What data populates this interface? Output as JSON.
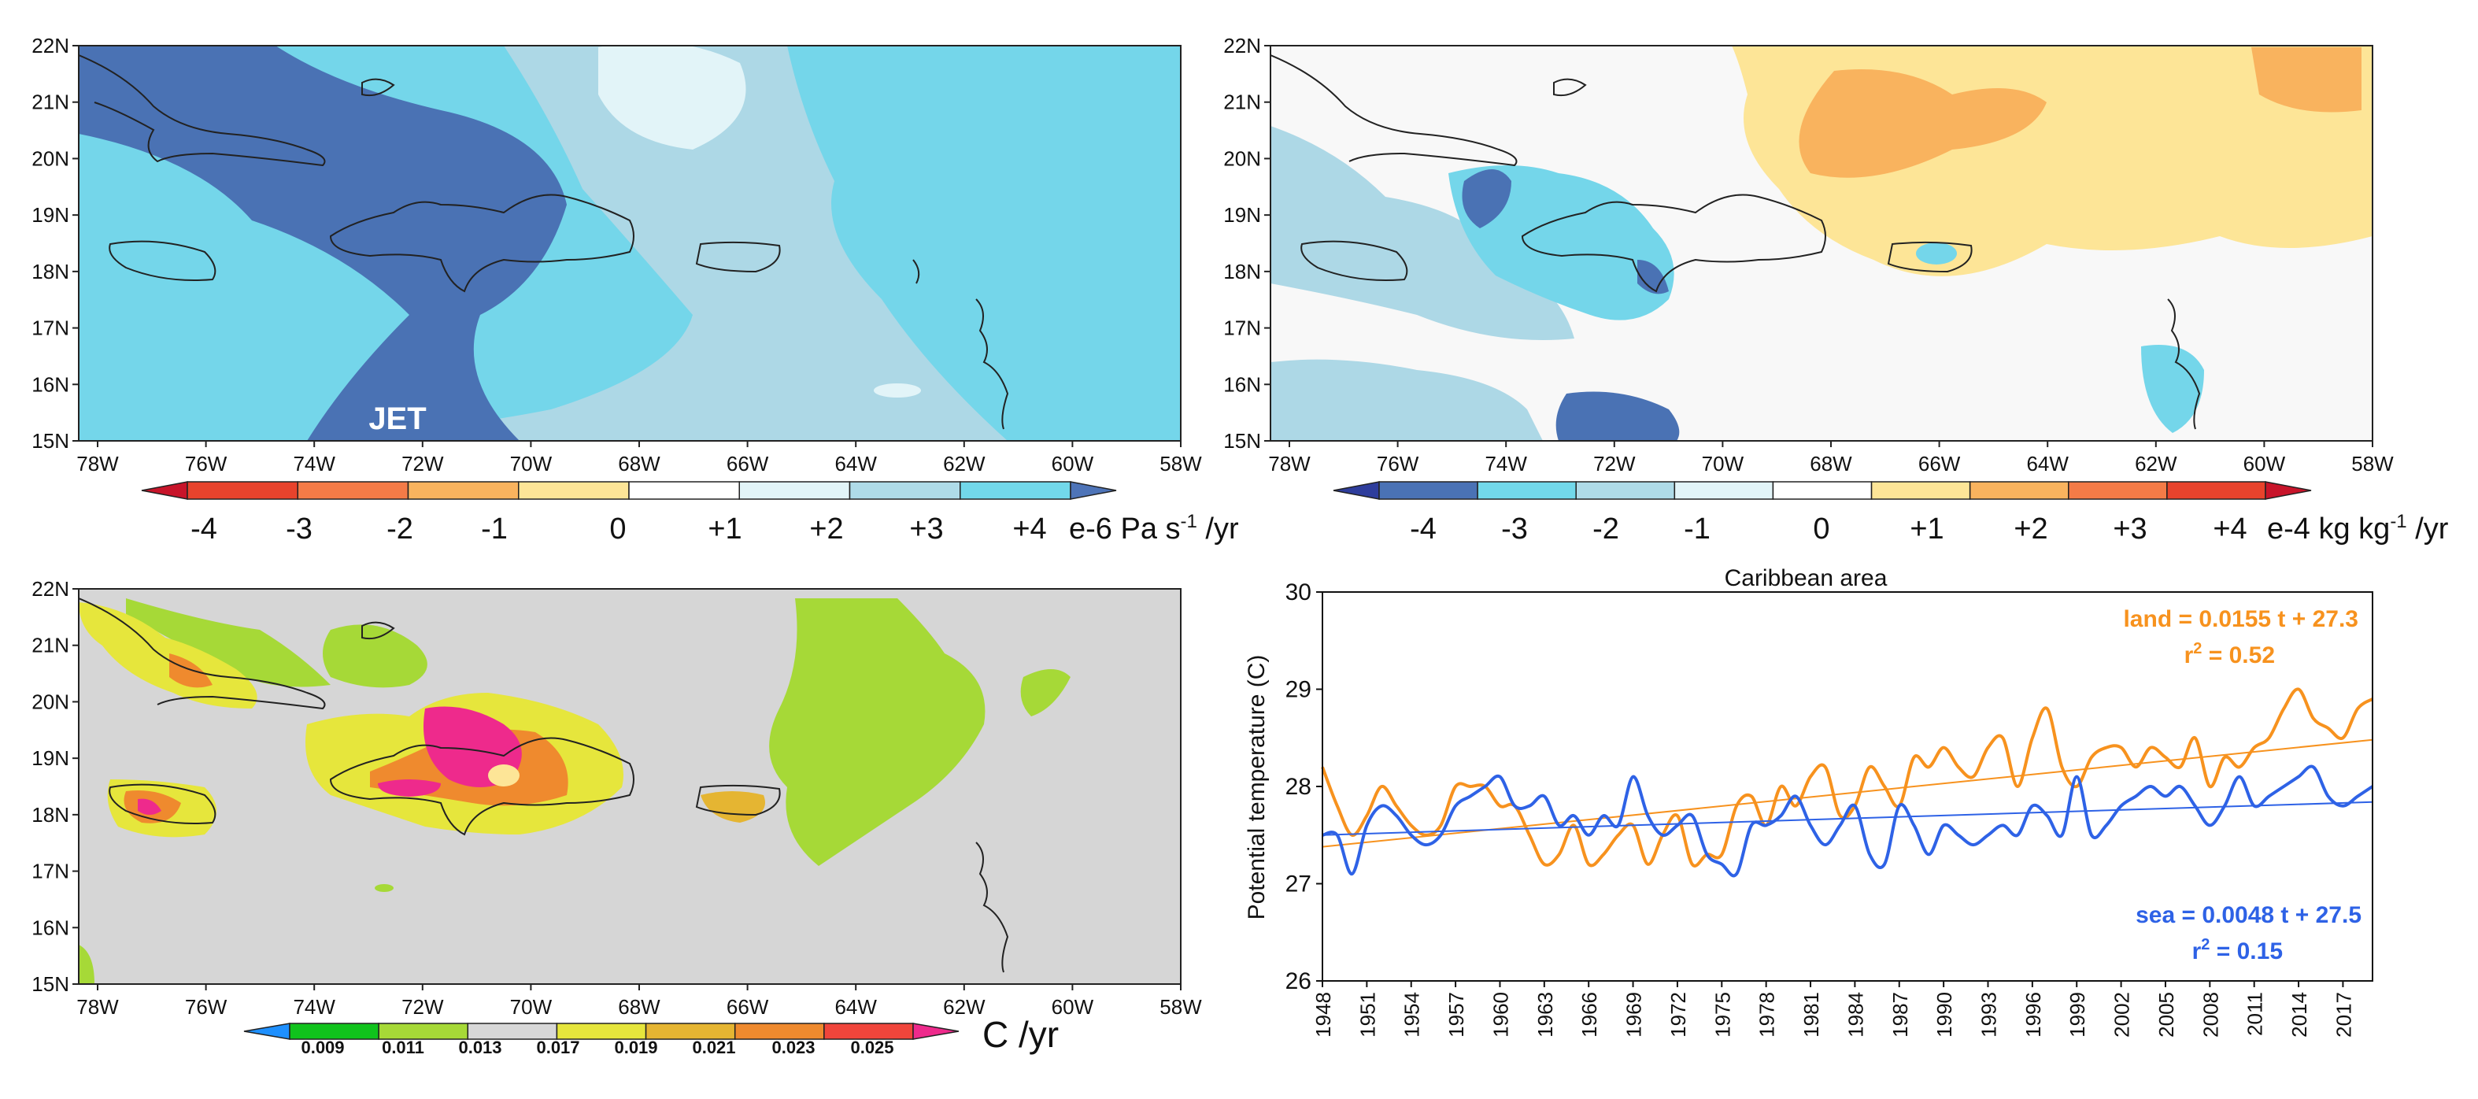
{
  "figure": {
    "lat_labels": [
      "22N",
      "21N",
      "20N",
      "19N",
      "18N",
      "17N",
      "16N",
      "15N"
    ],
    "lon_labels": [
      "78W",
      "76W",
      "74W",
      "72W",
      "70W",
      "68W",
      "66W",
      "64W",
      "62W",
      "60W",
      "58W"
    ]
  },
  "panel_a": {
    "annotation": "JET",
    "colorbar": {
      "ticks": [
        "-4",
        "-3",
        "-2",
        "-1",
        "0",
        "+1",
        "+2",
        "+3",
        "+4"
      ],
      "unit_prefix": "e-6 Pa s",
      "unit_sup": "-1",
      "unit_suffix": " /yr",
      "colors": [
        "#c8142a",
        "#e8432c",
        "#f47b47",
        "#f9b35e",
        "#fde597",
        "#ffffff",
        "#e2f4f8",
        "#afdbe8",
        "#72d8ea",
        "#4e74b8"
      ]
    }
  },
  "panel_b": {
    "colorbar": {
      "ticks": [
        "-4",
        "-3",
        "-2",
        "-1",
        "0",
        "+1",
        "+2",
        "+3",
        "+4"
      ],
      "unit_prefix": "e-4 kg kg",
      "unit_sup": "-1",
      "unit_suffix": " /yr",
      "colors": [
        "#2e3d9c",
        "#4a72b5",
        "#72d8ea",
        "#afdbe8",
        "#e2f4f8",
        "#ffffff",
        "#fde597",
        "#f9b35e",
        "#f47b47",
        "#e8432c",
        "#c8142a"
      ]
    }
  },
  "panel_c": {
    "colorbar": {
      "ticks": [
        "0.009",
        "0.011",
        "0.013",
        "0.017",
        "0.019",
        "0.021",
        "0.023",
        "0.025"
      ],
      "unit": "C /yr",
      "colors": [
        "#1e90ff",
        "#10c31c",
        "#a6d937",
        "#d7d7d7",
        "#e6e63c",
        "#e5b532",
        "#ef8a2e",
        "#f0453b",
        "#ee2a8c"
      ]
    }
  },
  "chart_data": {
    "type": "line",
    "title": "Caribbean area",
    "ylabel": "Potential temperature (C)",
    "xlabel": "",
    "ylim": [
      26,
      30
    ],
    "yticks": [
      26,
      27,
      28,
      29,
      30
    ],
    "xlim": [
      1948,
      2019
    ],
    "x_tick_labels": [
      "1948",
      "1951",
      "1954",
      "1957",
      "1960",
      "1963",
      "1966",
      "1969",
      "1972",
      "1975",
      "1978",
      "1981",
      "1984",
      "1987",
      "1990",
      "1993",
      "1996",
      "1999",
      "2002",
      "2005",
      "2008",
      "2011",
      "2014",
      "2017"
    ],
    "x": [
      1948,
      1949,
      1950,
      1951,
      1952,
      1953,
      1954,
      1955,
      1956,
      1957,
      1958,
      1959,
      1960,
      1961,
      1962,
      1963,
      1964,
      1965,
      1966,
      1967,
      1968,
      1969,
      1970,
      1971,
      1972,
      1973,
      1974,
      1975,
      1976,
      1977,
      1978,
      1979,
      1980,
      1981,
      1982,
      1983,
      1984,
      1985,
      1986,
      1987,
      1988,
      1989,
      1990,
      1991,
      1992,
      1993,
      1994,
      1995,
      1996,
      1997,
      1998,
      1999,
      2000,
      2001,
      2002,
      2003,
      2004,
      2005,
      2006,
      2007,
      2008,
      2009,
      2010,
      2011,
      2012,
      2013,
      2014,
      2015,
      2016,
      2017,
      2018,
      2019
    ],
    "series": [
      {
        "name": "land",
        "color": "#f7921e",
        "values": [
          28.2,
          27.8,
          27.5,
          27.7,
          28.0,
          27.8,
          27.6,
          27.5,
          27.6,
          28.0,
          28.0,
          28.0,
          27.8,
          27.8,
          27.5,
          27.2,
          27.3,
          27.6,
          27.2,
          27.3,
          27.5,
          27.6,
          27.2,
          27.5,
          27.7,
          27.2,
          27.3,
          27.3,
          27.8,
          27.9,
          27.6,
          28.0,
          27.8,
          28.1,
          28.2,
          27.7,
          27.8,
          28.2,
          28.0,
          27.8,
          28.3,
          28.2,
          28.4,
          28.2,
          28.1,
          28.4,
          28.5,
          28.0,
          28.5,
          28.8,
          28.2,
          28.0,
          28.3,
          28.4,
          28.4,
          28.2,
          28.4,
          28.3,
          28.2,
          28.5,
          28.0,
          28.3,
          28.2,
          28.4,
          28.5,
          28.8,
          29.0,
          28.7,
          28.6,
          28.5,
          28.8,
          28.9
        ],
        "trend": {
          "slope": 0.0155,
          "intercept": 27.3,
          "start_value": 27.38,
          "end_value": 28.48
        },
        "equation": "land = 0.0155 t + 27.3",
        "r2_prefix": "r",
        "r2_sup": "2",
        "r2_value": " = 0.52"
      },
      {
        "name": "sea",
        "color": "#2e62e6",
        "values": [
          27.5,
          27.5,
          27.1,
          27.6,
          27.8,
          27.7,
          27.5,
          27.4,
          27.5,
          27.8,
          27.9,
          28.0,
          28.1,
          27.8,
          27.8,
          27.9,
          27.6,
          27.7,
          27.5,
          27.7,
          27.6,
          28.1,
          27.7,
          27.5,
          27.6,
          27.7,
          27.3,
          27.2,
          27.1,
          27.6,
          27.6,
          27.7,
          27.9,
          27.6,
          27.4,
          27.6,
          27.8,
          27.3,
          27.2,
          27.8,
          27.6,
          27.3,
          27.6,
          27.5,
          27.4,
          27.5,
          27.6,
          27.5,
          27.8,
          27.7,
          27.5,
          28.1,
          27.5,
          27.6,
          27.8,
          27.9,
          28.0,
          27.9,
          28.0,
          27.8,
          27.6,
          27.8,
          28.1,
          27.8,
          27.9,
          28.0,
          28.1,
          28.2,
          27.9,
          27.8,
          27.9,
          28.0
        ],
        "trend": {
          "slope": 0.0048,
          "intercept": 27.5,
          "start_value": 27.5,
          "end_value": 27.84
        },
        "equation": "sea = 0.0048 t + 27.5",
        "r2_prefix": "r",
        "r2_sup": "2",
        "r2_value": " = 0.15"
      }
    ]
  }
}
